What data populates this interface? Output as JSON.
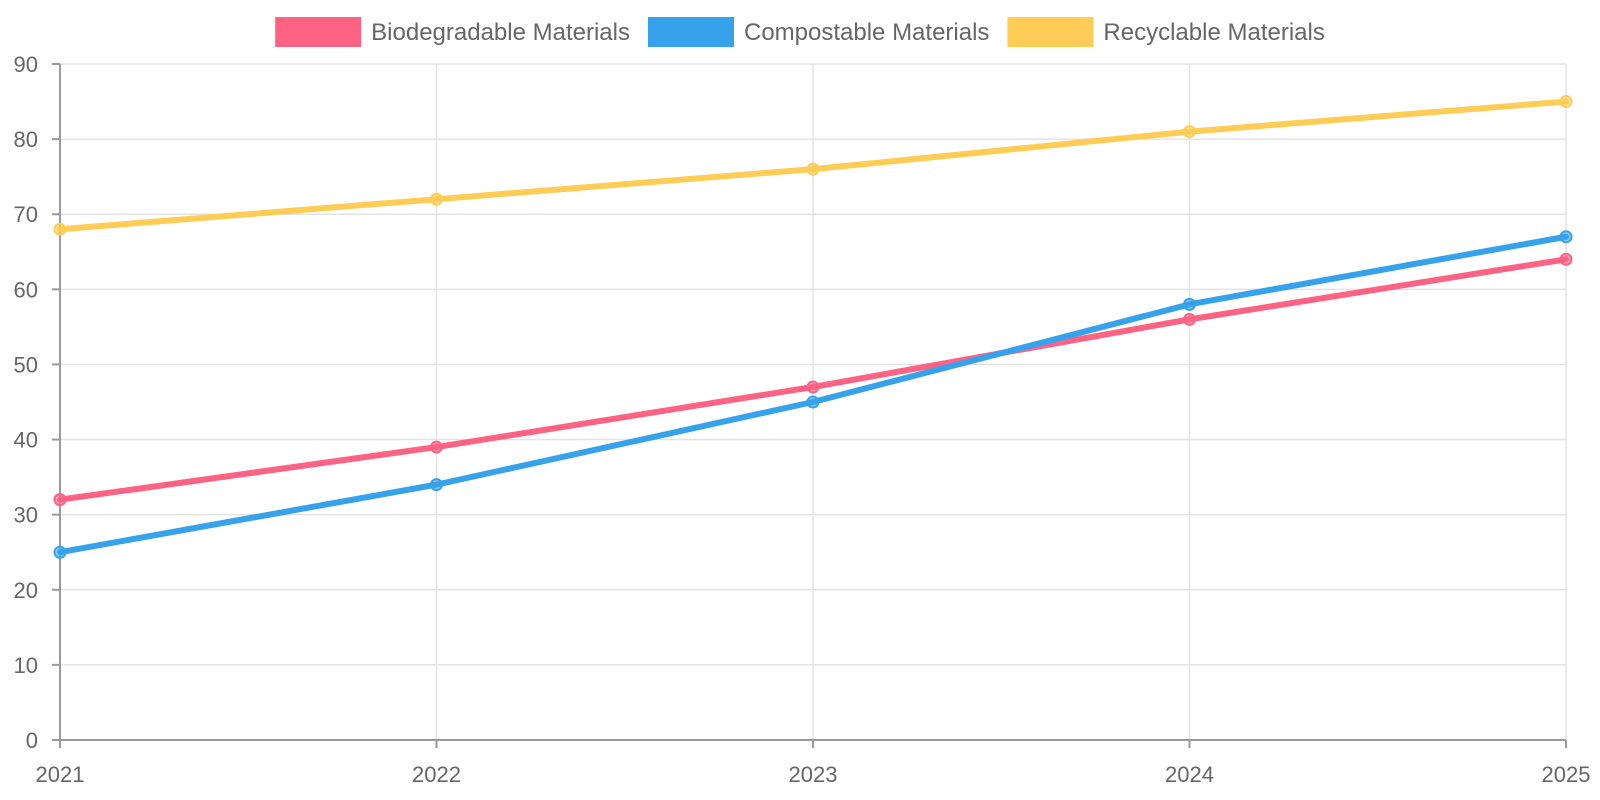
{
  "chart_data": {
    "type": "line",
    "title": "",
    "xlabel": "",
    "ylabel": "",
    "categories": [
      "2021",
      "2022",
      "2023",
      "2024",
      "2025"
    ],
    "ylim": [
      0,
      90
    ],
    "yticks": [
      0,
      10,
      20,
      30,
      40,
      50,
      60,
      70,
      80,
      90
    ],
    "grid": true,
    "legend_position": "top",
    "series": [
      {
        "name": "Biodegradable Materials",
        "color": "#ff6384",
        "values": [
          32,
          39,
          47,
          56,
          64
        ]
      },
      {
        "name": "Compostable Materials",
        "color": "#36a2eb",
        "values": [
          25,
          34,
          45,
          58,
          67
        ]
      },
      {
        "name": "Recyclable Materials",
        "color": "#ffcd56",
        "values": [
          68,
          72,
          76,
          81,
          85
        ]
      }
    ]
  }
}
